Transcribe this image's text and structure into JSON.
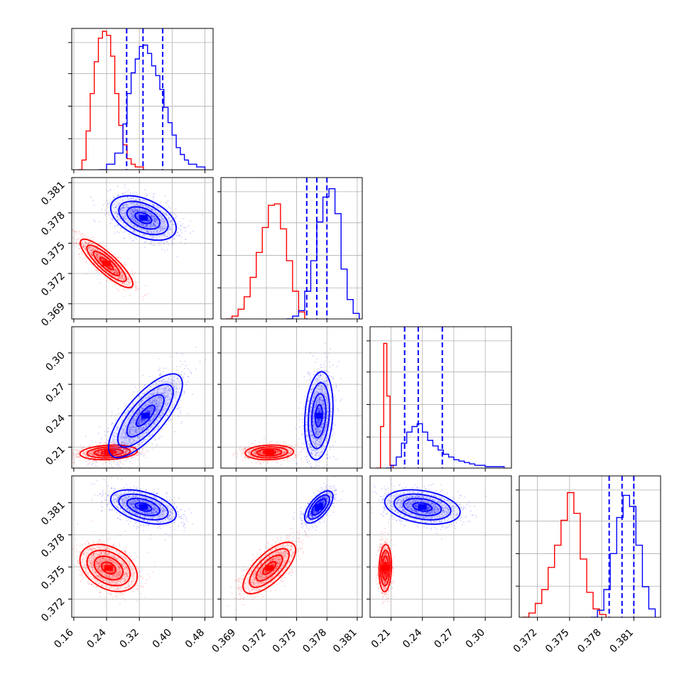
{
  "chart_data": {
    "type": "corner",
    "title": "",
    "grid": true,
    "legend": "none",
    "series": [
      {
        "color": "#ff0000"
      },
      {
        "color": "#0000ff"
      }
    ],
    "parameters": [
      {
        "range": [
          0.155,
          0.5
        ],
        "ticks": [
          0.16,
          0.24,
          0.32,
          0.4,
          0.48
        ],
        "tick_labels": [
          "0.16",
          "0.24",
          "0.32",
          "0.40",
          "0.48"
        ]
      },
      {
        "range": [
          0.3675,
          0.3815
        ],
        "ticks": [
          0.369,
          0.372,
          0.375,
          0.378,
          0.381
        ],
        "tick_labels": [
          "0.369",
          "0.372",
          "0.375",
          "0.378",
          "0.381"
        ]
      },
      {
        "range": [
          0.19,
          0.325
        ],
        "ticks": [
          0.21,
          0.24,
          0.27,
          0.3
        ],
        "tick_labels": [
          "0.21",
          "0.24",
          "0.27",
          "0.30"
        ]
      },
      {
        "range": [
          0.3703,
          0.3835
        ],
        "ticks": [
          0.372,
          0.375,
          0.378,
          0.381
        ],
        "tick_labels": [
          "0.372",
          "0.375",
          "0.378",
          "0.381"
        ]
      }
    ],
    "marginals": [
      {
        "param": 0,
        "red": [
          [
            0.17,
            0.0
          ],
          [
            0.18,
            0.07
          ],
          [
            0.19,
            0.28
          ],
          [
            0.2,
            0.55
          ],
          [
            0.21,
            0.78
          ],
          [
            0.22,
            0.95
          ],
          [
            0.23,
            1.0
          ],
          [
            0.24,
            0.97
          ],
          [
            0.25,
            0.82
          ],
          [
            0.26,
            0.55
          ],
          [
            0.27,
            0.32
          ],
          [
            0.28,
            0.18
          ],
          [
            0.29,
            0.08
          ],
          [
            0.3,
            0.04
          ],
          [
            0.31,
            0.02
          ],
          [
            0.33,
            0.0
          ]
        ],
        "blue": [
          [
            0.22,
            0.0
          ],
          [
            0.24,
            0.04
          ],
          [
            0.26,
            0.12
          ],
          [
            0.28,
            0.33
          ],
          [
            0.29,
            0.55
          ],
          [
            0.3,
            0.7
          ],
          [
            0.31,
            0.8
          ],
          [
            0.32,
            0.89
          ],
          [
            0.33,
            0.9
          ],
          [
            0.34,
            0.84
          ],
          [
            0.35,
            0.75
          ],
          [
            0.36,
            0.68
          ],
          [
            0.37,
            0.58
          ],
          [
            0.38,
            0.45
          ],
          [
            0.39,
            0.34
          ],
          [
            0.4,
            0.25
          ],
          [
            0.41,
            0.16
          ],
          [
            0.42,
            0.11
          ],
          [
            0.43,
            0.07
          ],
          [
            0.44,
            0.04
          ],
          [
            0.46,
            0.02
          ],
          [
            0.48,
            0.0
          ]
        ],
        "quantiles": [
          0.289,
          0.329,
          0.377
        ]
      },
      {
        "param": 1,
        "red": [
          [
            0.368,
            0.0
          ],
          [
            0.3686,
            0.02
          ],
          [
            0.3692,
            0.07
          ],
          [
            0.3698,
            0.16
          ],
          [
            0.3704,
            0.3
          ],
          [
            0.371,
            0.48
          ],
          [
            0.3716,
            0.66
          ],
          [
            0.3722,
            0.82
          ],
          [
            0.3728,
            0.83
          ],
          [
            0.3734,
            0.65
          ],
          [
            0.374,
            0.42
          ],
          [
            0.3746,
            0.2
          ],
          [
            0.3752,
            0.05
          ],
          [
            0.3758,
            0.0
          ]
        ],
        "blue": [
          [
            0.374,
            0.0
          ],
          [
            0.3746,
            0.02
          ],
          [
            0.3752,
            0.06
          ],
          [
            0.3758,
            0.2
          ],
          [
            0.3764,
            0.42
          ],
          [
            0.377,
            0.7
          ],
          [
            0.3776,
            0.88
          ],
          [
            0.3782,
            0.94
          ],
          [
            0.3788,
            0.76
          ],
          [
            0.3794,
            0.36
          ],
          [
            0.38,
            0.14
          ],
          [
            0.3806,
            0.04
          ],
          [
            0.3812,
            0.0
          ]
        ],
        "quantiles": [
          0.376,
          0.377,
          0.378
        ]
      },
      {
        "param": 2,
        "red": [
          [
            0.196,
            0.0
          ],
          [
            0.2,
            0.3
          ],
          [
            0.203,
            0.9
          ],
          [
            0.206,
            0.52
          ],
          [
            0.209,
            0.02
          ],
          [
            0.212,
            0.0
          ]
        ],
        "blue": [
          [
            0.205,
            0.0
          ],
          [
            0.21,
            0.02
          ],
          [
            0.215,
            0.08
          ],
          [
            0.22,
            0.18
          ],
          [
            0.225,
            0.26
          ],
          [
            0.23,
            0.3
          ],
          [
            0.235,
            0.32
          ],
          [
            0.24,
            0.26
          ],
          [
            0.245,
            0.2
          ],
          [
            0.25,
            0.16
          ],
          [
            0.255,
            0.13
          ],
          [
            0.26,
            0.1
          ],
          [
            0.265,
            0.08
          ],
          [
            0.27,
            0.06
          ],
          [
            0.275,
            0.05
          ],
          [
            0.28,
            0.04
          ],
          [
            0.285,
            0.03
          ],
          [
            0.29,
            0.02
          ],
          [
            0.3,
            0.01
          ],
          [
            0.318,
            0.0
          ]
        ],
        "quantiles": [
          0.223,
          0.236,
          0.259
        ]
      },
      {
        "param": 3,
        "red": [
          [
            0.3706,
            0.0
          ],
          [
            0.3712,
            0.03
          ],
          [
            0.3718,
            0.1
          ],
          [
            0.3724,
            0.2
          ],
          [
            0.373,
            0.36
          ],
          [
            0.3736,
            0.52
          ],
          [
            0.3742,
            0.7
          ],
          [
            0.3748,
            0.9
          ],
          [
            0.3754,
            0.75
          ],
          [
            0.376,
            0.42
          ],
          [
            0.3766,
            0.18
          ],
          [
            0.3772,
            0.06
          ],
          [
            0.3778,
            0.02
          ],
          [
            0.3784,
            0.0
          ]
        ],
        "blue": [
          [
            0.377,
            0.0
          ],
          [
            0.3776,
            0.05
          ],
          [
            0.3782,
            0.2
          ],
          [
            0.3788,
            0.46
          ],
          [
            0.3794,
            0.72
          ],
          [
            0.38,
            0.88
          ],
          [
            0.3806,
            0.8
          ],
          [
            0.3812,
            0.52
          ],
          [
            0.3818,
            0.22
          ],
          [
            0.3824,
            0.06
          ],
          [
            0.383,
            0.0
          ]
        ],
        "quantiles": [
          0.3787,
          0.3799,
          0.381
        ]
      }
    ],
    "joint": [
      {
        "x": 0,
        "y": 1,
        "red": {
          "mean": [
            0.24,
            0.373
          ],
          "sd": [
            0.032,
            0.0012
          ],
          "rho": -0.85,
          "n": 1300
        },
        "blue": {
          "mean": [
            0.33,
            0.3775
          ],
          "sd": [
            0.04,
            0.0011
          ],
          "rho": -0.45,
          "n": 1300
        }
      },
      {
        "x": 0,
        "y": 2,
        "red": {
          "mean": [
            0.245,
            0.205
          ],
          "sd": [
            0.035,
            0.0035
          ],
          "rho": 0.2,
          "n": 1300
        },
        "blue": {
          "mean": [
            0.335,
            0.24
          ],
          "sd": [
            0.045,
            0.02
          ],
          "rho": 0.75,
          "n": 1300
        }
      },
      {
        "x": 1,
        "y": 2,
        "red": {
          "mean": [
            0.3723,
            0.205
          ],
          "sd": [
            0.0012,
            0.0035
          ],
          "rho": 0.1,
          "n": 1300
        },
        "blue": {
          "mean": [
            0.3772,
            0.24
          ],
          "sd": [
            0.0007,
            0.021
          ],
          "rho": 0.2,
          "n": 1300
        }
      },
      {
        "x": 0,
        "y": 3,
        "red": {
          "mean": [
            0.245,
            0.3749
          ],
          "sd": [
            0.035,
            0.0011
          ],
          "rho": -0.35,
          "n": 1300
        },
        "blue": {
          "mean": [
            0.33,
            0.3806
          ],
          "sd": [
            0.04,
            0.0008
          ],
          "rho": -0.45,
          "n": 1300
        }
      },
      {
        "x": 1,
        "y": 3,
        "red": {
          "mean": [
            0.3723,
            0.3749
          ],
          "sd": [
            0.0013,
            0.0012
          ],
          "rho": 0.7,
          "n": 1300
        },
        "blue": {
          "mean": [
            0.3772,
            0.3806
          ],
          "sd": [
            0.0007,
            0.00075
          ],
          "rho": 0.65,
          "n": 1300
        }
      },
      {
        "x": 2,
        "y": 3,
        "red": {
          "mean": [
            0.2045,
            0.3749
          ],
          "sd": [
            0.003,
            0.0011
          ],
          "rho": 0.1,
          "n": 1300
        },
        "blue": {
          "mean": [
            0.24,
            0.3806
          ],
          "sd": [
            0.018,
            0.0008
          ],
          "rho": -0.3,
          "n": 1300
        }
      }
    ]
  }
}
